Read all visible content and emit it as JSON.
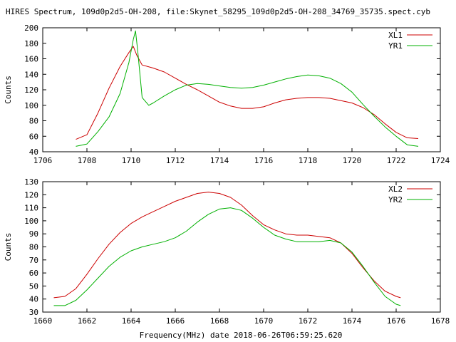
{
  "title": "HIRES Spectrum, 109d0p2d5-OH-208, file:Skynet_58295_109d0p2d5-OH-208_34769_35735.spect.cyb",
  "xlabel": "Frequency(MHz) date 2018-06-26T06:59:25.620",
  "colors": {
    "red": "#cc0000",
    "green": "#00b000",
    "axis": "#000000"
  },
  "chart_data": [
    {
      "type": "line",
      "title": "",
      "ylabel": "Counts",
      "xlim": [
        1706,
        1724
      ],
      "ylim": [
        40,
        200
      ],
      "xticks": [
        1706,
        1708,
        1710,
        1712,
        1714,
        1716,
        1718,
        1720,
        1722,
        1724
      ],
      "yticks": [
        40,
        60,
        80,
        100,
        120,
        140,
        160,
        180,
        200
      ],
      "xtick_labels": [
        "1706",
        "1708",
        "1710",
        "1712",
        "1714",
        "1716",
        "1718",
        "1720",
        "1722",
        "1724"
      ],
      "ytick_labels": [
        "40",
        "60",
        "80",
        "100",
        "120",
        "140",
        "160",
        "180",
        "200"
      ],
      "legend_position": "top-right",
      "grid": false,
      "series": [
        {
          "name": "XL1",
          "color": "#cc0000",
          "x": [
            1707.5,
            1708.0,
            1708.5,
            1709.0,
            1709.5,
            1709.9,
            1710.1,
            1710.25,
            1710.5,
            1711.0,
            1711.5,
            1712.0,
            1712.5,
            1713.0,
            1713.5,
            1714.0,
            1714.5,
            1715.0,
            1715.5,
            1716.0,
            1716.5,
            1717.0,
            1717.5,
            1718.0,
            1718.5,
            1719.0,
            1719.5,
            1720.0,
            1720.5,
            1721.0,
            1721.5,
            1722.0,
            1722.5,
            1723.0
          ],
          "y": [
            56,
            62,
            90,
            122,
            150,
            168,
            176,
            165,
            152,
            148,
            143,
            135,
            127,
            120,
            112,
            104,
            99,
            96,
            96,
            98,
            103,
            107,
            109,
            110,
            110,
            109,
            106,
            103,
            97,
            88,
            76,
            65,
            58,
            57
          ]
        },
        {
          "name": "YR1",
          "color": "#00b000",
          "x": [
            1707.5,
            1708.0,
            1708.5,
            1709.0,
            1709.5,
            1709.9,
            1710.1,
            1710.2,
            1710.3,
            1710.5,
            1710.8,
            1711.0,
            1711.5,
            1712.0,
            1712.5,
            1713.0,
            1713.5,
            1714.0,
            1714.5,
            1715.0,
            1715.5,
            1716.0,
            1716.5,
            1717.0,
            1717.5,
            1718.0,
            1718.5,
            1719.0,
            1719.5,
            1720.0,
            1720.5,
            1721.0,
            1721.5,
            1722.0,
            1722.5,
            1723.0
          ],
          "y": [
            47,
            50,
            66,
            85,
            115,
            155,
            185,
            196,
            170,
            110,
            100,
            103,
            112,
            120,
            126,
            128,
            127,
            125,
            123,
            122,
            123,
            126,
            130,
            134,
            137,
            139,
            138,
            135,
            128,
            117,
            101,
            86,
            72,
            60,
            49,
            47
          ]
        }
      ]
    },
    {
      "type": "line",
      "title": "",
      "ylabel": "Counts",
      "xlim": [
        1660,
        1678
      ],
      "ylim": [
        30,
        130
      ],
      "xticks": [
        1660,
        1662,
        1664,
        1666,
        1668,
        1670,
        1672,
        1674,
        1676,
        1678
      ],
      "yticks": [
        30,
        40,
        50,
        60,
        70,
        80,
        90,
        100,
        110,
        120,
        130
      ],
      "xtick_labels": [
        "1660",
        "1662",
        "1664",
        "1666",
        "1668",
        "1670",
        "1672",
        "1674",
        "1676",
        "1678"
      ],
      "ytick_labels": [
        "30",
        "40",
        "50",
        "60",
        "70",
        "80",
        "90",
        "100",
        "110",
        "120",
        "130"
      ],
      "legend_position": "top-right",
      "grid": false,
      "series": [
        {
          "name": "XL2",
          "color": "#cc0000",
          "x": [
            1660.5,
            1661.0,
            1661.5,
            1662.0,
            1662.5,
            1663.0,
            1663.5,
            1664.0,
            1664.5,
            1665.0,
            1665.5,
            1666.0,
            1666.5,
            1667.0,
            1667.5,
            1668.0,
            1668.5,
            1669.0,
            1669.5,
            1670.0,
            1670.5,
            1671.0,
            1671.5,
            1672.0,
            1672.5,
            1673.0,
            1673.5,
            1674.0,
            1674.5,
            1675.0,
            1675.5,
            1676.0,
            1676.2
          ],
          "y": [
            41,
            42,
            48,
            59,
            71,
            82,
            91,
            98,
            103,
            107,
            111,
            115,
            118,
            121,
            122,
            121,
            118,
            112,
            104,
            97,
            93,
            90,
            89,
            89,
            88,
            87,
            83,
            75,
            64,
            54,
            46,
            42,
            41
          ]
        },
        {
          "name": "YR2",
          "color": "#00b000",
          "x": [
            1660.5,
            1661.0,
            1661.5,
            1662.0,
            1662.5,
            1663.0,
            1663.5,
            1664.0,
            1664.5,
            1665.0,
            1665.5,
            1666.0,
            1666.5,
            1667.0,
            1667.5,
            1668.0,
            1668.5,
            1669.0,
            1669.5,
            1670.0,
            1670.5,
            1671.0,
            1671.5,
            1672.0,
            1672.5,
            1673.0,
            1673.5,
            1674.0,
            1674.5,
            1675.0,
            1675.5,
            1676.0,
            1676.2
          ],
          "y": [
            35,
            35,
            39,
            47,
            56,
            65,
            72,
            77,
            80,
            82,
            84,
            87,
            92,
            99,
            105,
            109,
            110,
            108,
            102,
            95,
            89,
            86,
            84,
            84,
            84,
            85,
            83,
            76,
            65,
            53,
            42,
            36,
            35
          ]
        }
      ]
    }
  ]
}
